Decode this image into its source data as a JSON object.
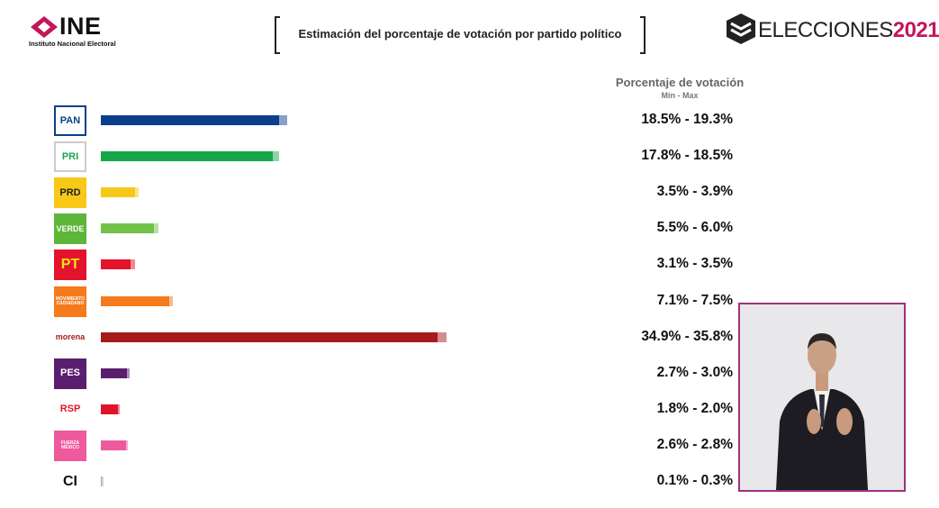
{
  "header": {
    "org_name": "INE",
    "org_subtitle": "Instituto Nacional Electoral",
    "title": "Estimación del porcentaje de votación por partido político",
    "event_prefix": "ELECCIONES",
    "event_year": "2021"
  },
  "legend": {
    "title": "Porcentaje de votación",
    "subtitle": "Mín - Max"
  },
  "colors": {
    "brand_magenta": "#c2175b",
    "frame_border": "#a0307a"
  },
  "chart_data": {
    "type": "bar",
    "orientation": "horizontal",
    "title": "Estimación del porcentaje de votación por partido político",
    "categories": [
      "PAN",
      "PRI",
      "PRD",
      "VERDE",
      "PT",
      "MC",
      "morena",
      "PES",
      "RSP",
      "FXM",
      "CI"
    ],
    "series": [
      {
        "name": "Mín",
        "values": [
          18.5,
          17.8,
          3.5,
          5.5,
          3.1,
          7.1,
          34.9,
          2.7,
          1.8,
          2.6,
          0.1
        ]
      },
      {
        "name": "Max",
        "values": [
          19.3,
          18.5,
          3.9,
          6.0,
          3.5,
          7.5,
          35.8,
          3.0,
          2.0,
          2.8,
          0.3
        ]
      }
    ],
    "range_labels": [
      "18.5% - 19.3%",
      "17.8% - 18.5%",
      "3.5% - 3.9%",
      "5.5% - 6.0%",
      "3.1% - 3.5%",
      "7.1% - 7.5%",
      "34.9% - 35.8%",
      "2.7% - 3.0%",
      "1.8% - 2.0%",
      "2.6% - 2.8%",
      "0.1% - 0.3%"
    ],
    "bar_colors": [
      "#0b3f8c",
      "#18a64a",
      "#f7c818",
      "#72c24a",
      "#e3132b",
      "#f57a1c",
      "#a51b1b",
      "#5a1e6e",
      "#e3132b",
      "#ee5a9c",
      "#aaaaaa"
    ],
    "bar_ext_colors": [
      "#8a9fc6",
      "#8ed3a4",
      "#fbe38b",
      "#b8e0a4",
      "#f08a94",
      "#f9bc8d",
      "#d28d8d",
      "#ac8eb6",
      "#f08a94",
      "#f6acce",
      "#d4d4d4"
    ],
    "xlim": [
      0,
      40
    ],
    "grid": false,
    "legend_position": "top-right"
  },
  "party_logos": [
    {
      "name": "pan-logo",
      "text": "PAN",
      "bg": "#ffffff",
      "fg": "#0b3f8c",
      "border": "#0b3f8c"
    },
    {
      "name": "pri-logo",
      "text": "PRI",
      "bg": "#ffffff",
      "fg": "#18a64a",
      "border": "#cccccc"
    },
    {
      "name": "prd-logo",
      "text": "PRD",
      "bg": "#f7c818",
      "fg": "#222222",
      "border": "#f7c818"
    },
    {
      "name": "verde-logo",
      "text": "VERDE",
      "bg": "#5cb638",
      "fg": "#ffffff",
      "border": "#5cb638"
    },
    {
      "name": "pt-logo",
      "text": "PT",
      "bg": "#e3132b",
      "fg": "#f7e018",
      "border": "#e3132b"
    },
    {
      "name": "mc-logo",
      "text": "MOVIMIENTO CIUDADANO",
      "bg": "#f57a1c",
      "fg": "#ffffff",
      "border": "#f57a1c"
    },
    {
      "name": "morena-logo",
      "text": "morena",
      "bg": "#ffffff",
      "fg": "#a51b1b",
      "border": "#ffffff"
    },
    {
      "name": "pes-logo",
      "text": "PES",
      "bg": "#5a1e6e",
      "fg": "#ffffff",
      "border": "#5a1e6e"
    },
    {
      "name": "rsp-logo",
      "text": "RSP",
      "bg": "#ffffff",
      "fg": "#e3132b",
      "border": "#ffffff"
    },
    {
      "name": "fxm-logo",
      "text": "FUERZA MÉXICO",
      "bg": "#ee5a9c",
      "fg": "#ffffff",
      "border": "#ee5a9c"
    },
    {
      "name": "ci-logo",
      "text": "CI",
      "bg": "#ffffff",
      "fg": "#111111",
      "border": "#ffffff"
    }
  ]
}
